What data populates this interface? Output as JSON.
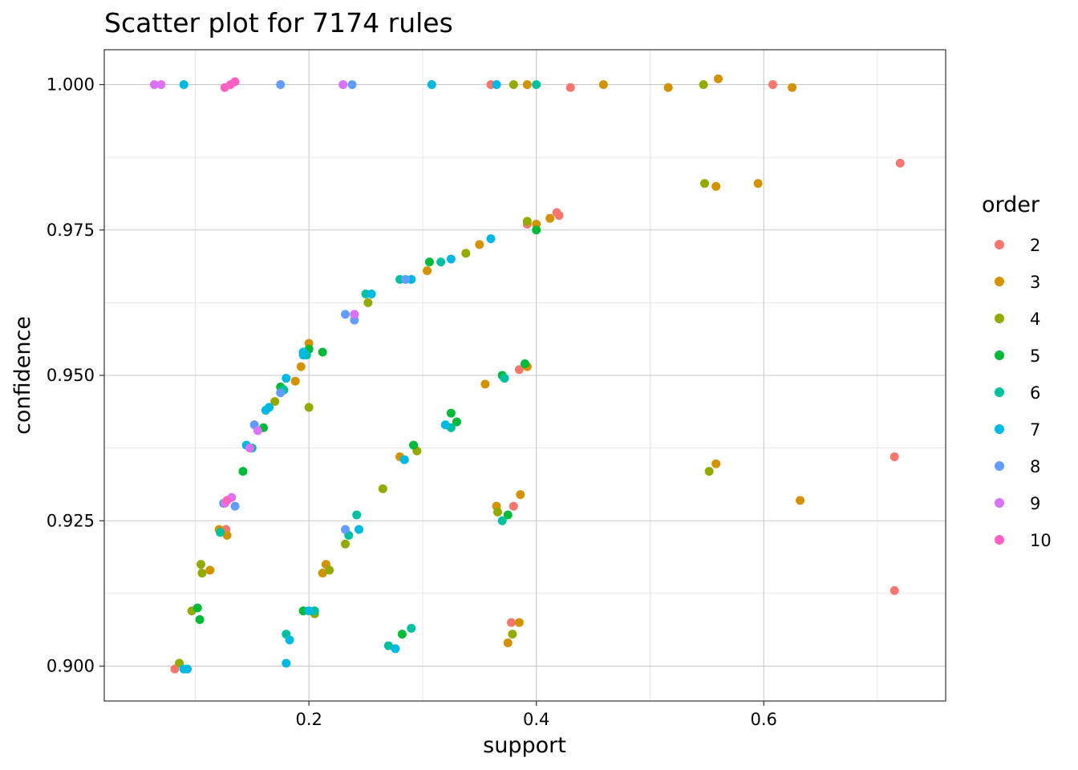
{
  "chart_data": {
    "type": "scatter",
    "title": "Scatter plot for 7174 rules",
    "xlabel": "support",
    "ylabel": "confidence",
    "xlim": [
      0.02,
      0.76
    ],
    "ylim": [
      0.894,
      1.006
    ],
    "x_ticks": [
      {
        "value": 0.2,
        "label": "0.2"
      },
      {
        "value": 0.4,
        "label": "0.4"
      },
      {
        "value": 0.6,
        "label": "0.6"
      }
    ],
    "y_ticks": [
      {
        "value": 0.9,
        "label": "0.900"
      },
      {
        "value": 0.925,
        "label": "0.925"
      },
      {
        "value": 0.95,
        "label": "0.950"
      },
      {
        "value": 0.975,
        "label": "0.975"
      },
      {
        "value": 1.0,
        "label": "1.000"
      }
    ],
    "grid": true,
    "legend": {
      "title": "order",
      "position": "right"
    },
    "series": [
      {
        "name": "2",
        "color": "#F8766D",
        "points": [
          [
            0.72,
            0.9865
          ],
          [
            0.715,
            0.936
          ],
          [
            0.715,
            0.913
          ],
          [
            0.608,
            1.0
          ],
          [
            0.43,
            0.9995
          ],
          [
            0.418,
            0.978
          ],
          [
            0.42,
            0.9775
          ],
          [
            0.392,
            0.976
          ],
          [
            0.38,
            0.9275
          ],
          [
            0.378,
            0.9075
          ],
          [
            0.385,
            0.951
          ],
          [
            0.127,
            0.9235
          ],
          [
            0.082,
            0.8995
          ],
          [
            0.36,
            1.0
          ]
        ]
      },
      {
        "name": "3",
        "color": "#D39200",
        "points": [
          [
            0.625,
            0.9995
          ],
          [
            0.56,
            1.001
          ],
          [
            0.516,
            0.9995
          ],
          [
            0.459,
            1.0
          ],
          [
            0.595,
            0.983
          ],
          [
            0.558,
            0.9825
          ],
          [
            0.558,
            0.9348
          ],
          [
            0.632,
            0.9285
          ],
          [
            0.412,
            0.977
          ],
          [
            0.4,
            0.976
          ],
          [
            0.355,
            0.9485
          ],
          [
            0.35,
            0.9725
          ],
          [
            0.386,
            0.9295
          ],
          [
            0.385,
            0.9075
          ],
          [
            0.375,
            0.904
          ],
          [
            0.392,
            0.9515
          ],
          [
            0.365,
            0.9275
          ],
          [
            0.215,
            0.9175
          ],
          [
            0.212,
            0.916
          ],
          [
            0.193,
            0.9515
          ],
          [
            0.188,
            0.949
          ],
          [
            0.2,
            0.9555
          ],
          [
            0.121,
            0.9235
          ],
          [
            0.128,
            0.9225
          ],
          [
            0.113,
            0.9165
          ],
          [
            0.304,
            0.968
          ],
          [
            0.392,
            1.0
          ],
          [
            0.28,
            0.936
          ]
        ]
      },
      {
        "name": "4",
        "color": "#93AA00",
        "points": [
          [
            0.547,
            1.0
          ],
          [
            0.548,
            0.983
          ],
          [
            0.552,
            0.9335
          ],
          [
            0.205,
            0.909
          ],
          [
            0.218,
            0.9165
          ],
          [
            0.097,
            0.9095
          ],
          [
            0.086,
            0.9005
          ],
          [
            0.105,
            0.9175
          ],
          [
            0.106,
            0.916
          ],
          [
            0.265,
            0.9305
          ],
          [
            0.252,
            0.9625
          ],
          [
            0.232,
            0.921
          ],
          [
            0.379,
            0.9055
          ],
          [
            0.366,
            0.9265
          ],
          [
            0.392,
            0.9765
          ],
          [
            0.338,
            0.971
          ],
          [
            0.17,
            0.9455
          ],
          [
            0.2,
            0.9445
          ],
          [
            0.295,
            0.937
          ],
          [
            0.38,
            1.0
          ]
        ]
      },
      {
        "name": "5",
        "color": "#00BA38",
        "points": [
          [
            0.142,
            0.9335
          ],
          [
            0.2,
            0.9545
          ],
          [
            0.212,
            0.954
          ],
          [
            0.104,
            0.908
          ],
          [
            0.102,
            0.91
          ],
          [
            0.4,
            0.975
          ],
          [
            0.292,
            0.938
          ],
          [
            0.325,
            0.9435
          ],
          [
            0.39,
            0.952
          ],
          [
            0.375,
            0.926
          ],
          [
            0.282,
            0.9055
          ],
          [
            0.195,
            0.9095
          ],
          [
            0.306,
            0.9695
          ],
          [
            0.175,
            0.948
          ],
          [
            0.16,
            0.941
          ],
          [
            0.37,
            0.95
          ],
          [
            0.33,
            0.942
          ]
        ]
      },
      {
        "name": "6",
        "color": "#00C19F",
        "points": [
          [
            0.242,
            0.926
          ],
          [
            0.235,
            0.9225
          ],
          [
            0.27,
            0.9035
          ],
          [
            0.29,
            0.9065
          ],
          [
            0.18,
            0.9055
          ],
          [
            0.205,
            0.9095
          ],
          [
            0.325,
            0.941
          ],
          [
            0.372,
            0.9495
          ],
          [
            0.37,
            0.925
          ],
          [
            0.28,
            0.9665
          ],
          [
            0.316,
            0.9695
          ],
          [
            0.178,
            0.9475
          ],
          [
            0.198,
            0.9535
          ],
          [
            0.15,
            0.9375
          ],
          [
            0.122,
            0.923
          ],
          [
            0.125,
            0.928
          ],
          [
            0.25,
            0.964
          ],
          [
            0.4,
            1.0
          ]
        ]
      },
      {
        "name": "7",
        "color": "#00B9E3",
        "points": [
          [
            0.09,
            0.8995
          ],
          [
            0.093,
            0.8995
          ],
          [
            0.18,
            0.9005
          ],
          [
            0.183,
            0.9045
          ],
          [
            0.2,
            0.9095
          ],
          [
            0.244,
            0.9235
          ],
          [
            0.284,
            0.9355
          ],
          [
            0.276,
            0.903
          ],
          [
            0.32,
            0.9415
          ],
          [
            0.36,
            0.9735
          ],
          [
            0.325,
            0.97
          ],
          [
            0.29,
            0.9665
          ],
          [
            0.255,
            0.964
          ],
          [
            0.195,
            0.9535
          ],
          [
            0.18,
            0.9495
          ],
          [
            0.165,
            0.9445
          ],
          [
            0.145,
            0.938
          ],
          [
            0.162,
            0.944
          ],
          [
            0.195,
            0.954
          ],
          [
            0.308,
            1.0
          ],
          [
            0.365,
            1.0
          ],
          [
            0.09,
            1.0
          ]
        ]
      },
      {
        "name": "8",
        "color": "#619CFF",
        "points": [
          [
            0.232,
            0.9235
          ],
          [
            0.232,
            0.9605
          ],
          [
            0.24,
            0.9595
          ],
          [
            0.152,
            0.9415
          ],
          [
            0.135,
            0.9275
          ],
          [
            0.175,
            0.947
          ],
          [
            0.285,
            0.9665
          ],
          [
            0.238,
            1.0
          ],
          [
            0.175,
            1.0
          ]
        ]
      },
      {
        "name": "9",
        "color": "#DB72FB",
        "points": [
          [
            0.132,
            0.929
          ],
          [
            0.126,
            0.928
          ],
          [
            0.148,
            0.9375
          ],
          [
            0.155,
            0.9405
          ],
          [
            0.24,
            0.9605
          ],
          [
            0.064,
            1.0
          ],
          [
            0.07,
            1.0
          ],
          [
            0.23,
            1.0
          ]
        ]
      },
      {
        "name": "10",
        "color": "#FF61C3",
        "points": [
          [
            0.128,
            0.9285
          ],
          [
            0.131,
            1.0
          ],
          [
            0.126,
            0.9995
          ],
          [
            0.135,
            1.0005
          ]
        ]
      }
    ]
  }
}
